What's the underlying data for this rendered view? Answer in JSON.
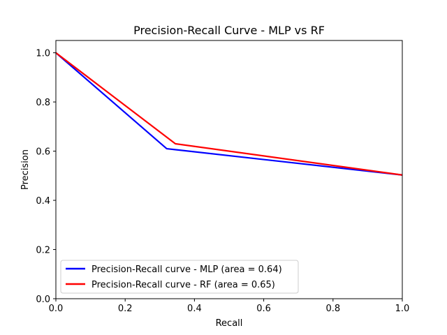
{
  "chart_data": {
    "type": "line",
    "title": "Precision-Recall Curve - MLP vs RF",
    "xlabel": "Recall",
    "ylabel": "Precision",
    "xlim": [
      0,
      1
    ],
    "ylim": [
      0,
      1.05
    ],
    "xticks": [
      "0.0",
      "0.2",
      "0.4",
      "0.6",
      "0.8",
      "1.0"
    ],
    "yticks": [
      "0.0",
      "0.2",
      "0.4",
      "0.6",
      "0.8",
      "1.0"
    ],
    "grid": false,
    "legend_position": "lower-left",
    "series": [
      {
        "name": "Precision-Recall curve - MLP (area = 0.64)",
        "color": "#0000ff",
        "x": [
          0.0,
          0.32,
          1.0
        ],
        "y": [
          1.0,
          0.61,
          0.503
        ]
      },
      {
        "name": "Precision-Recall curve - RF (area = 0.65)",
        "color": "#ff0000",
        "x": [
          0.0,
          0.345,
          1.0
        ],
        "y": [
          1.0,
          0.63,
          0.503
        ]
      }
    ]
  }
}
